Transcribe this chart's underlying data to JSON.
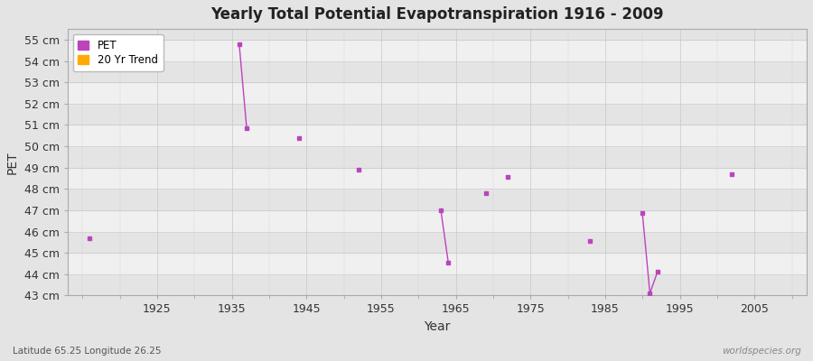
{
  "title": "Yearly Total Potential Evapotranspiration 1916 - 2009",
  "xlabel": "Year",
  "ylabel": "PET",
  "xlim": [
    1913,
    2012
  ],
  "ylim": [
    43,
    55.5
  ],
  "yticks": [
    43,
    44,
    45,
    46,
    47,
    48,
    49,
    50,
    51,
    52,
    53,
    54,
    55
  ],
  "ytick_labels": [
    "43 cm",
    "44 cm",
    "45 cm",
    "46 cm",
    "47 cm",
    "48 cm",
    "49 cm",
    "50 cm",
    "51 cm",
    "52 cm",
    "53 cm",
    "54 cm",
    "55 cm"
  ],
  "xticks": [
    1925,
    1935,
    1945,
    1955,
    1965,
    1975,
    1985,
    1995,
    2005
  ],
  "pet_color": "#bb44bb",
  "trend_color": "#ffaa00",
  "bg_color": "#e4e4e4",
  "plot_bg_light": "#f0f0f0",
  "plot_bg_dark": "#e4e4e4",
  "pet_scatter": [
    [
      1916,
      45.7
    ],
    [
      1944,
      50.4
    ],
    [
      1952,
      48.9
    ],
    [
      1969,
      47.8
    ],
    [
      1972,
      48.55
    ],
    [
      1983,
      45.55
    ],
    [
      2002,
      48.7
    ]
  ],
  "pet_segments": [
    [
      [
        1936,
        54.8
      ],
      [
        1937,
        50.85
      ]
    ],
    [
      [
        1963,
        47.0
      ],
      [
        1964,
        44.55
      ]
    ],
    [
      [
        1990,
        46.85
      ],
      [
        1991,
        43.1
      ],
      [
        1992,
        44.1
      ]
    ]
  ],
  "watermark": "worldspecies.org",
  "footnote": "Latitude 65.25 Longitude 26.25"
}
